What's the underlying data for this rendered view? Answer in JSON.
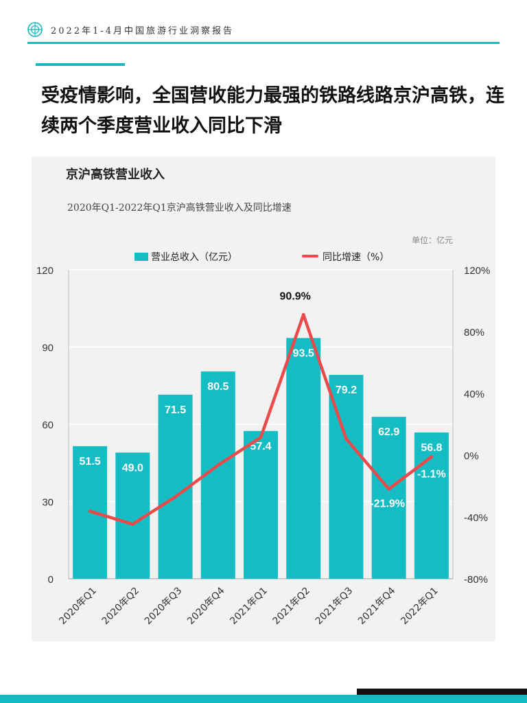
{
  "header": {
    "report_title": "2022年1-4月中国旅游行业洞察报告"
  },
  "headline": {
    "text": "受疫情影响，全国营收能力最强的铁路线路京沪高铁，连续两个季度营业收入同比下滑"
  },
  "chart_header": {
    "title": "京沪高铁营业收入",
    "subtitle": "2020年Q1-2022年Q1京沪高铁营业收入及同比增速",
    "unit": "单位：亿元"
  },
  "legend": {
    "bar_label": "营业总收入（亿元）",
    "line_label": "同比增速（%）"
  },
  "colors": {
    "accent": "#15b9c1",
    "bar": "#14bcc4",
    "line": "#ea4a4a"
  },
  "chart_data": {
    "type": "bar",
    "categories": [
      "2020年Q1",
      "2020年Q2",
      "2020年Q3",
      "2020年Q4",
      "2021年Q1",
      "2021年Q2",
      "2021年Q3",
      "2021年Q4",
      "2022年Q1"
    ],
    "series": [
      {
        "name": "营业总收入（亿元）",
        "type": "bar",
        "axis": "left",
        "values": [
          51.5,
          49.0,
          71.5,
          80.5,
          57.4,
          93.5,
          79.2,
          62.9,
          56.8
        ],
        "labels": [
          "51.5",
          "49.0",
          "71.5",
          "80.5",
          "57.4",
          "93.5",
          "79.2",
          "62.9",
          "56.8"
        ]
      },
      {
        "name": "同比增速（%）",
        "type": "line",
        "axis": "right",
        "values": [
          -36.3,
          -44.7,
          -27.0,
          -6.5,
          11.5,
          90.9,
          10.6,
          -21.9,
          -1.1
        ],
        "labels": [
          "",
          "",
          "",
          "",
          "",
          "90.9%",
          "",
          "-21.9%",
          "-1.1%"
        ]
      }
    ],
    "y_left": {
      "ticks": [
        "0",
        "30",
        "60",
        "90",
        "120"
      ],
      "range": [
        0,
        120
      ]
    },
    "y_right": {
      "ticks": [
        "-80%",
        "-40%",
        "0%",
        "40%",
        "80%",
        "120%"
      ],
      "range": [
        -80,
        120
      ]
    },
    "grid": true,
    "legend_position": "top"
  }
}
